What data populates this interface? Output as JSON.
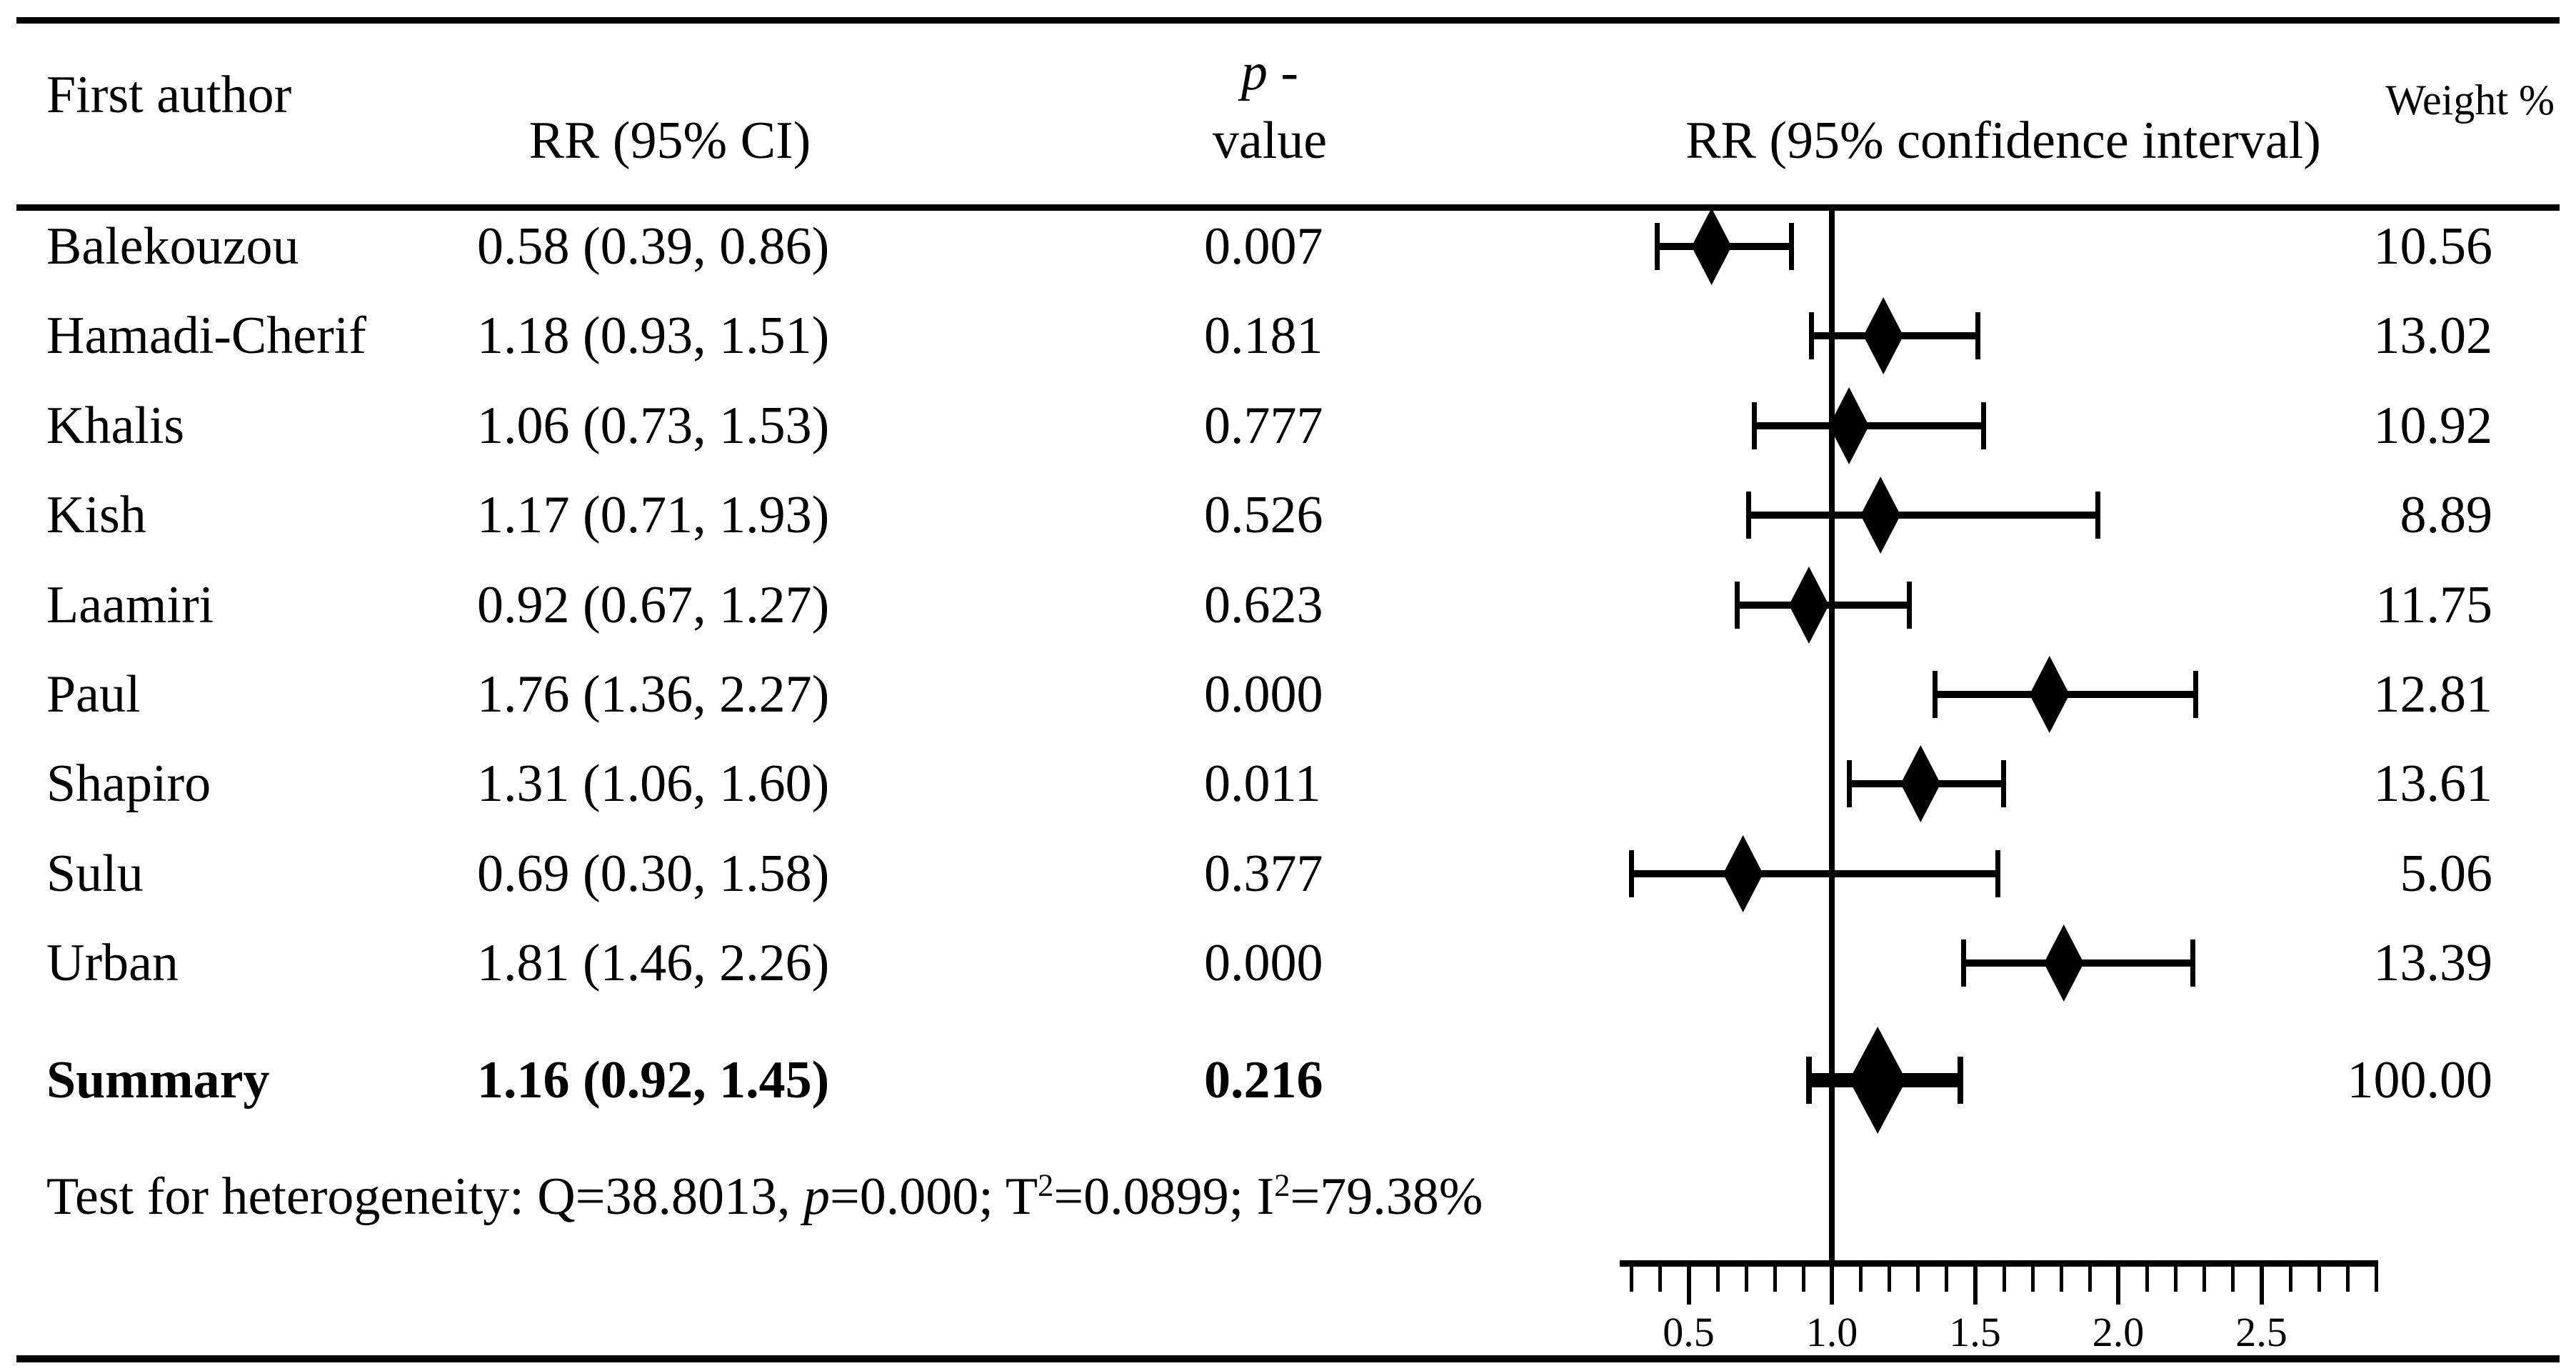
{
  "figure": {
    "headers": {
      "first_author": "First author",
      "rr_ci": "RR (95% CI)",
      "p_header_p": "p",
      "p_header_dash": " -",
      "p_header_line2": "value",
      "plot_title": "RR (95% confidence interval)",
      "weight": "Weight %"
    },
    "heterogeneity": {
      "prefix": "Test for heterogeneity: Q=38.8013, ",
      "p_symbol": "p",
      "mid1": "=0.000; T",
      "sup1": "2",
      "mid2": "=0.0899; I",
      "sup2": "2",
      "tail": "=79.38%"
    }
  },
  "chart_data": {
    "type": "scatter",
    "subtype": "forest-plot",
    "title": "RR (95% confidence interval)",
    "xlabel": "",
    "ylabel": "",
    "x_axis": {
      "range": [
        0.26,
        2.9
      ],
      "reference_line": 1.0,
      "major_ticks": [
        0.5,
        1.0,
        1.5,
        2.0,
        2.5
      ],
      "major_tick_labels": [
        "0.5",
        "1.0",
        "1.5",
        "2.0",
        "2.5"
      ],
      "minor_tick_start": 0.3,
      "minor_tick_end": 2.9,
      "minor_tick_step": 0.1,
      "grid": false
    },
    "studies": [
      {
        "author": "Balekouzou",
        "rr": 0.58,
        "ci_lower": 0.39,
        "ci_upper": 0.86,
        "rr_ci_text": "0.58 (0.39, 0.86)",
        "p_text": "0.007",
        "weight_text": "10.56"
      },
      {
        "author": "Hamadi-Cherif",
        "rr": 1.18,
        "ci_lower": 0.93,
        "ci_upper": 1.51,
        "rr_ci_text": "1.18 (0.93, 1.51)",
        "p_text": "0.181",
        "weight_text": "13.02"
      },
      {
        "author": "Khalis",
        "rr": 1.06,
        "ci_lower": 0.73,
        "ci_upper": 1.53,
        "rr_ci_text": "1.06 (0.73, 1.53)",
        "p_text": "0.777",
        "weight_text": "10.92"
      },
      {
        "author": "Kish",
        "rr": 1.17,
        "ci_lower": 0.71,
        "ci_upper": 1.93,
        "rr_ci_text": "1.17 (0.71, 1.93)",
        "p_text": "0.526",
        "weight_text": "8.89"
      },
      {
        "author": "Laamiri",
        "rr": 0.92,
        "ci_lower": 0.67,
        "ci_upper": 1.27,
        "rr_ci_text": "0.92 (0.67, 1.27)",
        "p_text": "0.623",
        "weight_text": "11.75"
      },
      {
        "author": "Paul",
        "rr": 1.76,
        "ci_lower": 1.36,
        "ci_upper": 2.27,
        "rr_ci_text": "1.76 (1.36, 2.27)",
        "p_text": "0.000",
        "weight_text": "12.81"
      },
      {
        "author": "Shapiro",
        "rr": 1.31,
        "ci_lower": 1.06,
        "ci_upper": 1.6,
        "rr_ci_text": "1.31 (1.06, 1.60)",
        "p_text": "0.011",
        "weight_text": "13.61"
      },
      {
        "author": "Sulu",
        "rr": 0.69,
        "ci_lower": 0.3,
        "ci_upper": 1.58,
        "rr_ci_text": "0.69 (0.30, 1.58)",
        "p_text": "0.377",
        "weight_text": "5.06"
      },
      {
        "author": "Urban",
        "rr": 1.81,
        "ci_lower": 1.46,
        "ci_upper": 2.26,
        "rr_ci_text": "1.81 (1.46, 2.26)",
        "p_text": "0.000",
        "weight_text": "13.39"
      }
    ],
    "summary": {
      "label": "Summary",
      "rr": 1.16,
      "ci_lower": 0.92,
      "ci_upper": 1.45,
      "rr_ci_text": "1.16 (0.92, 1.45)",
      "p_text": "0.216",
      "weight_text": "100.00"
    },
    "heterogeneity_stats": {
      "Q": "38.8013",
      "p": "0.000",
      "T2": "0.0899",
      "I2": "79.38%"
    },
    "legend": null
  },
  "colors": {
    "ink": "#000000",
    "background": "#ffffff"
  }
}
